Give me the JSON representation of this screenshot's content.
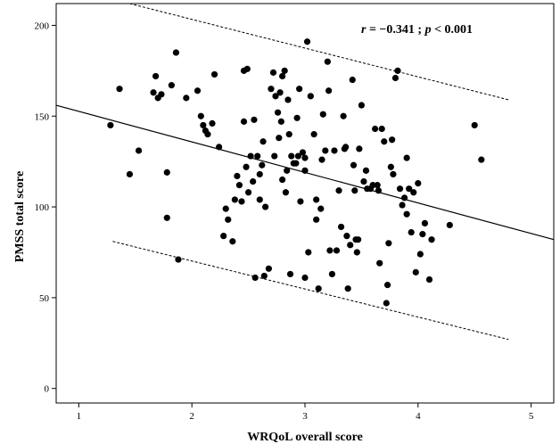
{
  "chart_data": {
    "type": "scatter",
    "xlabel": "WRQoL overall score",
    "ylabel": "PMSS  total score",
    "xlim": [
      0.8,
      5.2
    ],
    "ylim": [
      -8,
      212
    ],
    "xticks": [
      1,
      2,
      3,
      4,
      5
    ],
    "yticks": [
      0,
      50,
      100,
      150,
      200
    ],
    "grid": false,
    "annotation": {
      "r_symbol": "r",
      "r_text": " = −0.341 ; ",
      "p_symbol": "p",
      "p_text": " < 0.001"
    },
    "fit_line": {
      "x": [
        0.8,
        5.2
      ],
      "y": [
        156,
        82
      ]
    },
    "ci_upper": {
      "x": [
        1.45,
        4.8
      ],
      "y": [
        212,
        159
      ]
    },
    "ci_lower": {
      "x": [
        1.3,
        4.8
      ],
      "y": [
        81,
        27
      ]
    },
    "points": [
      [
        1.28,
        145
      ],
      [
        1.36,
        165
      ],
      [
        1.45,
        118
      ],
      [
        1.53,
        131
      ],
      [
        1.66,
        163
      ],
      [
        1.68,
        172
      ],
      [
        1.7,
        160
      ],
      [
        1.73,
        162
      ],
      [
        1.78,
        119
      ],
      [
        1.78,
        94
      ],
      [
        1.82,
        167
      ],
      [
        1.86,
        185
      ],
      [
        1.88,
        71
      ],
      [
        1.95,
        160
      ],
      [
        2.05,
        164
      ],
      [
        2.08,
        150
      ],
      [
        2.1,
        145
      ],
      [
        2.12,
        142
      ],
      [
        2.14,
        140
      ],
      [
        2.18,
        146
      ],
      [
        2.2,
        173
      ],
      [
        2.24,
        133
      ],
      [
        2.28,
        84
      ],
      [
        2.3,
        99
      ],
      [
        2.32,
        93
      ],
      [
        2.36,
        81
      ],
      [
        2.38,
        104
      ],
      [
        2.4,
        117
      ],
      [
        2.42,
        112
      ],
      [
        2.44,
        103
      ],
      [
        2.46,
        147
      ],
      [
        2.46,
        175
      ],
      [
        2.48,
        122
      ],
      [
        2.49,
        176
      ],
      [
        2.5,
        108
      ],
      [
        2.52,
        128
      ],
      [
        2.54,
        114
      ],
      [
        2.55,
        148
      ],
      [
        2.56,
        61
      ],
      [
        2.58,
        128
      ],
      [
        2.6,
        104
      ],
      [
        2.6,
        118
      ],
      [
        2.62,
        123
      ],
      [
        2.63,
        136
      ],
      [
        2.64,
        62
      ],
      [
        2.65,
        100
      ],
      [
        2.68,
        66
      ],
      [
        2.7,
        165
      ],
      [
        2.72,
        174
      ],
      [
        2.73,
        128
      ],
      [
        2.74,
        161
      ],
      [
        2.76,
        152
      ],
      [
        2.77,
        138
      ],
      [
        2.78,
        163
      ],
      [
        2.79,
        147
      ],
      [
        2.8,
        172
      ],
      [
        2.8,
        115
      ],
      [
        2.82,
        175
      ],
      [
        2.83,
        108
      ],
      [
        2.84,
        120
      ],
      [
        2.85,
        159
      ],
      [
        2.86,
        140
      ],
      [
        2.87,
        63
      ],
      [
        2.88,
        128
      ],
      [
        2.9,
        124
      ],
      [
        2.92,
        124
      ],
      [
        2.93,
        149
      ],
      [
        2.94,
        128
      ],
      [
        2.95,
        165
      ],
      [
        2.96,
        103
      ],
      [
        2.98,
        130
      ],
      [
        3.0,
        127
      ],
      [
        3.0,
        120
      ],
      [
        3.0,
        61
      ],
      [
        3.02,
        191
      ],
      [
        3.03,
        75
      ],
      [
        3.05,
        161
      ],
      [
        3.08,
        140
      ],
      [
        3.1,
        104
      ],
      [
        3.1,
        93
      ],
      [
        3.12,
        55
      ],
      [
        3.14,
        99
      ],
      [
        3.15,
        126
      ],
      [
        3.16,
        151
      ],
      [
        3.18,
        131
      ],
      [
        3.2,
        180
      ],
      [
        3.21,
        164
      ],
      [
        3.22,
        76
      ],
      [
        3.24,
        63
      ],
      [
        3.26,
        131
      ],
      [
        3.28,
        76
      ],
      [
        3.3,
        109
      ],
      [
        3.32,
        89
      ],
      [
        3.34,
        150
      ],
      [
        3.35,
        132
      ],
      [
        3.36,
        133
      ],
      [
        3.37,
        84
      ],
      [
        3.38,
        55
      ],
      [
        3.4,
        79
      ],
      [
        3.42,
        170
      ],
      [
        3.43,
        123
      ],
      [
        3.44,
        109
      ],
      [
        3.45,
        82
      ],
      [
        3.46,
        75
      ],
      [
        3.47,
        82
      ],
      [
        3.48,
        132
      ],
      [
        3.5,
        156
      ],
      [
        3.52,
        114
      ],
      [
        3.54,
        120
      ],
      [
        3.55,
        110
      ],
      [
        3.58,
        110
      ],
      [
        3.6,
        112
      ],
      [
        3.62,
        143
      ],
      [
        3.64,
        112
      ],
      [
        3.65,
        109
      ],
      [
        3.66,
        69
      ],
      [
        3.68,
        143
      ],
      [
        3.7,
        136
      ],
      [
        3.72,
        47
      ],
      [
        3.73,
        57
      ],
      [
        3.74,
        80
      ],
      [
        3.76,
        122
      ],
      [
        3.77,
        137
      ],
      [
        3.78,
        118
      ],
      [
        3.8,
        171
      ],
      [
        3.82,
        175
      ],
      [
        3.84,
        110
      ],
      [
        3.86,
        101
      ],
      [
        3.88,
        105
      ],
      [
        3.9,
        127
      ],
      [
        3.9,
        96
      ],
      [
        3.92,
        110
      ],
      [
        3.94,
        86
      ],
      [
        3.96,
        108
      ],
      [
        3.98,
        64
      ],
      [
        4.0,
        113
      ],
      [
        4.02,
        74
      ],
      [
        4.04,
        85
      ],
      [
        4.06,
        91
      ],
      [
        4.1,
        60
      ],
      [
        4.12,
        82
      ],
      [
        4.28,
        90
      ],
      [
        4.5,
        145
      ],
      [
        4.56,
        126
      ]
    ]
  }
}
